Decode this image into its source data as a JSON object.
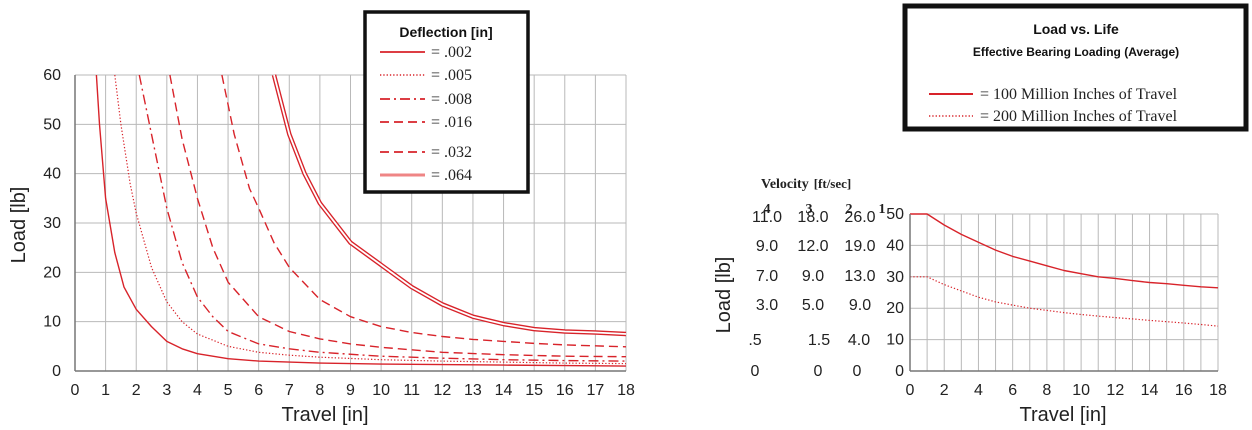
{
  "colors": {
    "curve": "#d8232a",
    "curve_light": "#ef8585",
    "grid": "#b9b9b9",
    "axis": "#777777",
    "frame": "#111111"
  },
  "chart_data": [
    {
      "type": "line",
      "xlabel": "Travel [in]",
      "ylabel": "Load [lb]",
      "xlim": [
        0,
        18
      ],
      "ylim": [
        0,
        60
      ],
      "x_ticks": [
        "0",
        "1",
        "2",
        "3",
        "4",
        "5",
        "6",
        "7",
        "8",
        "9",
        "10",
        "11",
        "12",
        "13",
        "14",
        "15",
        "16",
        "17",
        "18"
      ],
      "y_ticks": [
        "0",
        "10",
        "20",
        "30",
        "40",
        "50",
        "60"
      ],
      "grid": true,
      "legend": {
        "title": "Deflection [in]",
        "placement": "top-right",
        "entries": [
          {
            "label": "= .002",
            "style": "solid"
          },
          {
            "label": "= .005",
            "style": "dotted"
          },
          {
            "label": "= .008",
            "style": "dashdot"
          },
          {
            "label": "= .016",
            "style": "dashed"
          },
          {
            "label": "= .032",
            "style": "dashed"
          },
          {
            "label": "= .064",
            "style": "double"
          }
        ]
      },
      "series": [
        {
          "style": "solid",
          "x": [
            0.7,
            0.8,
            1.0,
            1.3,
            1.6,
            2.0,
            2.5,
            3.0,
            3.5,
            4.0,
            5.0,
            6.0,
            7.0,
            8.0,
            10.0,
            12.0,
            14.0,
            16.0,
            18.0
          ],
          "y": [
            60,
            50,
            35,
            24,
            17,
            12.5,
            9,
            6,
            4.5,
            3.5,
            2.5,
            2,
            1.8,
            1.6,
            1.4,
            1.3,
            1.2,
            1.1,
            1.0
          ]
        },
        {
          "style": "dotted",
          "x": [
            1.3,
            1.5,
            1.8,
            2.0,
            2.5,
            3.0,
            3.5,
            4.0,
            5.0,
            6.0,
            7.0,
            8.0,
            10.0,
            12.0,
            14.0,
            16.0,
            18.0
          ],
          "y": [
            60,
            50,
            38,
            32,
            21,
            14,
            10,
            7.5,
            5,
            3.8,
            3.2,
            2.8,
            2.3,
            2.0,
            1.8,
            1.6,
            1.5
          ]
        },
        {
          "style": "dashdot",
          "x": [
            2.1,
            2.5,
            3.0,
            3.5,
            4.0,
            4.5,
            5.0,
            6.0,
            7.0,
            8.0,
            10.0,
            12.0,
            14.0,
            16.0,
            18.0
          ],
          "y": [
            60,
            48,
            33,
            22,
            15,
            11,
            8,
            5.5,
            4.5,
            3.8,
            3.0,
            2.6,
            2.3,
            2.1,
            2.0
          ]
        },
        {
          "style": "dashed",
          "x": [
            3.1,
            3.5,
            4.0,
            4.5,
            5.0,
            6.0,
            7.0,
            8.0,
            9.0,
            10.0,
            12.0,
            14.0,
            16.0,
            18.0
          ],
          "y": [
            60,
            47,
            35,
            25,
            18,
            11,
            8,
            6.5,
            5.5,
            4.8,
            3.8,
            3.3,
            3.0,
            2.9
          ]
        },
        {
          "style": "dashed",
          "x": [
            4.8,
            5.2,
            5.7,
            6.0,
            6.5,
            7.0,
            8.0,
            9.0,
            10.0,
            11.0,
            12.0,
            13.0,
            14.0,
            15.0,
            16.0,
            18.0
          ],
          "y": [
            60,
            48,
            37,
            33,
            26,
            21,
            14.5,
            11,
            9,
            7.8,
            7.0,
            6.4,
            6.0,
            5.6,
            5.3,
            4.9
          ]
        },
        {
          "style": "double",
          "x": [
            6.5,
            7.0,
            7.5,
            8.0,
            9.0,
            10.0,
            11.0,
            12.0,
            13.0,
            14.0,
            15.0,
            16.0,
            17.0,
            18.0
          ],
          "y": [
            60,
            48,
            40,
            34,
            26,
            21.5,
            17,
            13.5,
            11,
            9.5,
            8.5,
            8,
            7.8,
            7.5
          ]
        }
      ]
    },
    {
      "type": "line",
      "xlabel": "Travel [in]",
      "ylabel": "Load [lb]",
      "xlim": [
        0,
        18
      ],
      "ylim": [
        0,
        50
      ],
      "x_ticks": [
        "0",
        "2",
        "4",
        "6",
        "8",
        "10",
        "12",
        "14",
        "16",
        "18"
      ],
      "y_ticks": [
        "0",
        "10",
        "20",
        "30",
        "40",
        "50"
      ],
      "grid": true,
      "velocity": {
        "title": "Velocity",
        "unit": "[ft/sec]",
        "headers": [
          "4",
          "3",
          "2",
          "1"
        ],
        "rows": [
          [
            "11.0",
            "18.0",
            "26.0"
          ],
          [
            "9.0",
            "12.0",
            "19.0"
          ],
          [
            "7.0",
            "9.0",
            "13.0"
          ],
          [
            "3.0",
            "5.0",
            "9.0"
          ],
          [
            ".5",
            "1.5",
            "4.0"
          ],
          [
            "0",
            "0",
            "0"
          ]
        ]
      },
      "legend": {
        "title": "Load vs. Life",
        "subtitle": "Effective Bearing Loading (Average)",
        "placement": "top-right",
        "entries": [
          {
            "label": "= 100 Million Inches of Travel",
            "style": "solid"
          },
          {
            "label": "= 200 Million Inches of Travel",
            "style": "dotted"
          }
        ]
      },
      "series": [
        {
          "style": "solid",
          "x": [
            0,
            1,
            2,
            3,
            4,
            5,
            6,
            7,
            8,
            9,
            10,
            11,
            12,
            13,
            14,
            15,
            16,
            17,
            18
          ],
          "y": [
            50,
            50,
            46.5,
            43.5,
            41,
            38.5,
            36.5,
            35,
            33.5,
            32,
            31,
            30,
            29.5,
            28.8,
            28.2,
            27.8,
            27.3,
            26.8,
            26.5
          ]
        },
        {
          "style": "dotted",
          "x": [
            0,
            1,
            2,
            3,
            4,
            5,
            6,
            7,
            8,
            9,
            10,
            11,
            12,
            13,
            14,
            15,
            16,
            17,
            18
          ],
          "y": [
            30,
            30,
            27.5,
            25.5,
            23.5,
            22,
            21,
            20,
            19.3,
            18.6,
            18,
            17.5,
            17,
            16.6,
            16.1,
            15.7,
            15.3,
            14.8,
            14.3
          ]
        }
      ]
    }
  ]
}
